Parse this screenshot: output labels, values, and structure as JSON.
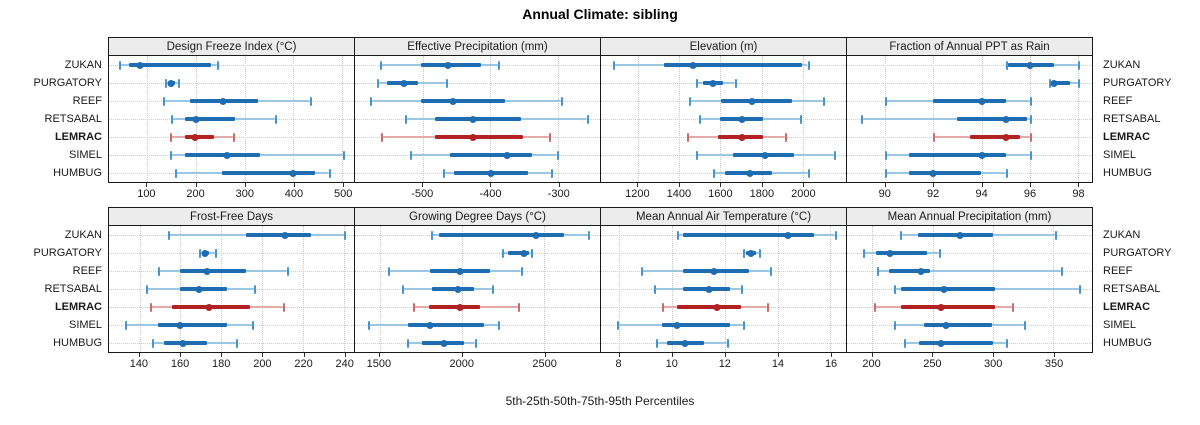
{
  "title": "Annual Climate: sibling",
  "caption": "5th-25th-50th-75th-95th Percentiles",
  "sites": [
    "ZUKAN",
    "PURGATORY",
    "REEF",
    "RETSABAL",
    "LEMRAC",
    "SIMEL",
    "HUMBUG"
  ],
  "highlighted_site": "LEMRAC",
  "colors": {
    "normal_dark": "#1e6db2",
    "normal_light": "#9cc7e4",
    "normal_cap": "#4694d1",
    "highlight_dark": "#b22222",
    "highlight_light": "#e4aaaa",
    "highlight_cap": "#cb6a6a",
    "strip_bg": "#ececec",
    "panel_border": "#1a1a1a",
    "grid": "#c9c9c9"
  },
  "chart_data": [
    {
      "type": "dot-whisker percentiles",
      "title": "Design Freeze Index (°C)",
      "grid_row": 0,
      "axis": {
        "min": 22,
        "max": 524,
        "ticks": [
          100,
          200,
          300,
          400,
          500
        ]
      },
      "series": [
        {
          "site": "ZUKAN",
          "p5": 43,
          "p25": 63,
          "p50": 85,
          "p75": 232,
          "p95": 244
        },
        {
          "site": "PURGATORY",
          "p5": 136,
          "p25": 144,
          "p50": 150,
          "p75": 157,
          "p95": 164
        },
        {
          "site": "REEF",
          "p5": 133,
          "p25": 188,
          "p50": 256,
          "p75": 328,
          "p95": 434
        },
        {
          "site": "RETSABAL",
          "p5": 150,
          "p25": 177,
          "p50": 201,
          "p75": 280,
          "p95": 362
        },
        {
          "site": "LEMRAC",
          "p5": 146,
          "p25": 177,
          "p50": 199,
          "p75": 238,
          "p95": 277
        },
        {
          "site": "SIMEL",
          "p5": 146,
          "p25": 177,
          "p50": 263,
          "p75": 331,
          "p95": 502
        },
        {
          "site": "HUMBUG",
          "p5": 157,
          "p25": 253,
          "p50": 400,
          "p75": 444,
          "p95": 472
        }
      ]
    },
    {
      "type": "dot-whisker percentiles",
      "title": "Effective Precipitation (mm)",
      "grid_row": 0,
      "axis": {
        "min": -600,
        "max": -238,
        "ticks": [
          -500,
          -400,
          -300
        ]
      },
      "series": [
        {
          "site": "ZUKAN",
          "p5": -563,
          "p25": -502,
          "p50": -463,
          "p75": -414,
          "p95": -389
        },
        {
          "site": "PURGATORY",
          "p5": -568,
          "p25": -553,
          "p50": -527,
          "p75": -507,
          "p95": -465
        },
        {
          "site": "REEF",
          "p5": -578,
          "p25": -502,
          "p50": -455,
          "p75": -379,
          "p95": -296
        },
        {
          "site": "RETSABAL",
          "p5": -526,
          "p25": -482,
          "p50": -426,
          "p75": -355,
          "p95": -257
        },
        {
          "site": "LEMRAC",
          "p5": -561,
          "p25": -482,
          "p50": -425,
          "p75": -352,
          "p95": -313
        },
        {
          "site": "SIMEL",
          "p5": -519,
          "p25": -460,
          "p50": -375,
          "p75": -338,
          "p95": -301
        },
        {
          "site": "HUMBUG",
          "p5": -470,
          "p25": -453,
          "p50": -399,
          "p75": -345,
          "p95": -310
        }
      ]
    },
    {
      "type": "dot-whisker percentiles",
      "title": "Elevation (m)",
      "grid_row": 0,
      "axis": {
        "min": 1020,
        "max": 2210,
        "ticks": [
          1200,
          1400,
          1600,
          1800,
          2000
        ]
      },
      "series": [
        {
          "site": "ZUKAN",
          "p5": 1080,
          "p25": 1326,
          "p50": 1465,
          "p75": 1998,
          "p95": 2023
        },
        {
          "site": "PURGATORY",
          "p5": 1482,
          "p25": 1514,
          "p50": 1564,
          "p75": 1613,
          "p95": 1670
        },
        {
          "site": "REEF",
          "p5": 1446,
          "p25": 1605,
          "p50": 1752,
          "p75": 1949,
          "p95": 2096
        },
        {
          "site": "RETSABAL",
          "p5": 1498,
          "p25": 1597,
          "p50": 1703,
          "p75": 1809,
          "p95": 1986
        },
        {
          "site": "LEMRAC",
          "p5": 1436,
          "p25": 1588,
          "p50": 1703,
          "p75": 1809,
          "p95": 1916
        },
        {
          "site": "SIMEL",
          "p5": 1482,
          "p25": 1662,
          "p50": 1818,
          "p75": 1957,
          "p95": 2153
        },
        {
          "site": "HUMBUG",
          "p5": 1564,
          "p25": 1621,
          "p50": 1744,
          "p75": 1851,
          "p95": 2026
        }
      ]
    },
    {
      "type": "dot-whisker percentiles",
      "title": "Fraction of Annual PPT as Rain",
      "grid_row": 0,
      "axis": {
        "min": 88.4,
        "max": 98.6,
        "ticks": [
          90,
          92,
          94,
          96,
          98
        ]
      },
      "series": [
        {
          "site": "ZUKAN",
          "p5": 95.0,
          "p25": 95.1,
          "p50": 96.0,
          "p75": 97.0,
          "p95": 98.0
        },
        {
          "site": "PURGATORY",
          "p5": 96.8,
          "p25": 96.9,
          "p50": 97.0,
          "p75": 97.7,
          "p95": 98.0
        },
        {
          "site": "REEF",
          "p5": 90.0,
          "p25": 92.0,
          "p50": 94.0,
          "p75": 95.0,
          "p95": 96.0
        },
        {
          "site": "RETSABAL",
          "p5": 89.0,
          "p25": 93.0,
          "p50": 95.0,
          "p75": 95.9,
          "p95": 96.0
        },
        {
          "site": "LEMRAC",
          "p5": 92.0,
          "p25": 93.5,
          "p50": 95.0,
          "p75": 95.6,
          "p95": 96.0
        },
        {
          "site": "SIMEL",
          "p5": 90.0,
          "p25": 91.0,
          "p50": 94.0,
          "p75": 95.0,
          "p95": 96.0
        },
        {
          "site": "HUMBUG",
          "p5": 90.0,
          "p25": 91.0,
          "p50": 92.0,
          "p75": 94.0,
          "p95": 95.0
        }
      ]
    },
    {
      "type": "dot-whisker percentiles",
      "title": "Frost-Free Days",
      "grid_row": 1,
      "axis": {
        "min": 125,
        "max": 245,
        "ticks": [
          140,
          160,
          180,
          200,
          220,
          240
        ]
      },
      "series": [
        {
          "site": "ZUKAN",
          "p5": 154,
          "p25": 192,
          "p50": 211,
          "p75": 224,
          "p95": 240
        },
        {
          "site": "PURGATORY",
          "p5": 169,
          "p25": 171,
          "p50": 172,
          "p75": 174,
          "p95": 177
        },
        {
          "site": "REEF",
          "p5": 149,
          "p25": 160,
          "p50": 173,
          "p75": 192,
          "p95": 212
        },
        {
          "site": "RETSABAL",
          "p5": 143,
          "p25": 160,
          "p50": 169,
          "p75": 183,
          "p95": 196
        },
        {
          "site": "LEMRAC",
          "p5": 145,
          "p25": 156,
          "p50": 174,
          "p75": 194,
          "p95": 210
        },
        {
          "site": "SIMEL",
          "p5": 133,
          "p25": 149,
          "p50": 160,
          "p75": 183,
          "p95": 195
        },
        {
          "site": "HUMBUG",
          "p5": 146,
          "p25": 152,
          "p50": 161,
          "p75": 173,
          "p95": 187
        }
      ]
    },
    {
      "type": "dot-whisker percentiles",
      "title": "Growing Degree Days (°C)",
      "grid_row": 1,
      "axis": {
        "min": 1350,
        "max": 2840,
        "ticks": [
          1500,
          2000,
          2500
        ]
      },
      "series": [
        {
          "site": "ZUKAN",
          "p5": 1815,
          "p25": 1862,
          "p50": 2449,
          "p75": 2622,
          "p95": 2765
        },
        {
          "site": "PURGATORY",
          "p5": 2242,
          "p25": 2283,
          "p50": 2377,
          "p75": 2406,
          "p95": 2420
        },
        {
          "site": "REEF",
          "p5": 1551,
          "p25": 1806,
          "p50": 1986,
          "p75": 2173,
          "p95": 2357
        },
        {
          "site": "RETSABAL",
          "p5": 1638,
          "p25": 1816,
          "p50": 1979,
          "p75": 2071,
          "p95": 2183
        },
        {
          "site": "LEMRAC",
          "p5": 1704,
          "p25": 1802,
          "p50": 1990,
          "p75": 2112,
          "p95": 2341
        },
        {
          "site": "SIMEL",
          "p5": 1428,
          "p25": 1673,
          "p50": 1806,
          "p75": 2133,
          "p95": 2218
        },
        {
          "site": "HUMBUG",
          "p5": 1667,
          "p25": 1755,
          "p50": 1892,
          "p75": 2010,
          "p95": 2082
        }
      ]
    },
    {
      "type": "dot-whisker percentiles",
      "title": "Mean Annual Air Temperature (°C)",
      "grid_row": 1,
      "axis": {
        "min": 7.3,
        "max": 16.6,
        "ticks": [
          8,
          10,
          12,
          14,
          16
        ]
      },
      "series": [
        {
          "site": "ZUKAN",
          "p5": 10.2,
          "p25": 10.4,
          "p50": 14.4,
          "p75": 15.4,
          "p95": 16.2
        },
        {
          "site": "PURGATORY",
          "p5": 12.7,
          "p25": 12.8,
          "p50": 13.0,
          "p75": 13.2,
          "p95": 13.3
        },
        {
          "site": "REEF",
          "p5": 8.8,
          "p25": 10.4,
          "p50": 11.6,
          "p75": 12.9,
          "p95": 13.7
        },
        {
          "site": "RETSABAL",
          "p5": 9.3,
          "p25": 10.4,
          "p50": 11.4,
          "p75": 12.2,
          "p95": 12.6
        },
        {
          "site": "LEMRAC",
          "p5": 9.6,
          "p25": 10.2,
          "p50": 11.7,
          "p75": 12.6,
          "p95": 13.6
        },
        {
          "site": "SIMEL",
          "p5": 7.9,
          "p25": 9.6,
          "p50": 10.2,
          "p75": 12.2,
          "p95": 12.7
        },
        {
          "site": "HUMBUG",
          "p5": 9.4,
          "p25": 9.8,
          "p50": 10.5,
          "p75": 11.2,
          "p95": 12.1
        }
      ]
    },
    {
      "type": "dot-whisker percentiles",
      "title": "Mean Annual Precipitation (mm)",
      "grid_row": 1,
      "axis": {
        "min": 179,
        "max": 382,
        "ticks": [
          200,
          250,
          300,
          350
        ]
      },
      "series": [
        {
          "site": "ZUKAN",
          "p5": 223,
          "p25": 238,
          "p50": 273,
          "p75": 300,
          "p95": 351
        },
        {
          "site": "PURGATORY",
          "p5": 192,
          "p25": 203,
          "p50": 215,
          "p75": 245,
          "p95": 255
        },
        {
          "site": "REEF",
          "p5": 204,
          "p25": 214,
          "p50": 240,
          "p75": 248,
          "p95": 356
        },
        {
          "site": "RETSABAL",
          "p5": 218,
          "p25": 224,
          "p50": 259,
          "p75": 302,
          "p95": 371
        },
        {
          "site": "LEMRAC",
          "p5": 201,
          "p25": 224,
          "p50": 257,
          "p75": 302,
          "p95": 316
        },
        {
          "site": "SIMEL",
          "p5": 218,
          "p25": 243,
          "p50": 261,
          "p75": 299,
          "p95": 326
        },
        {
          "site": "HUMBUG",
          "p5": 226,
          "p25": 239,
          "p50": 257,
          "p75": 300,
          "p95": 311
        }
      ]
    }
  ]
}
